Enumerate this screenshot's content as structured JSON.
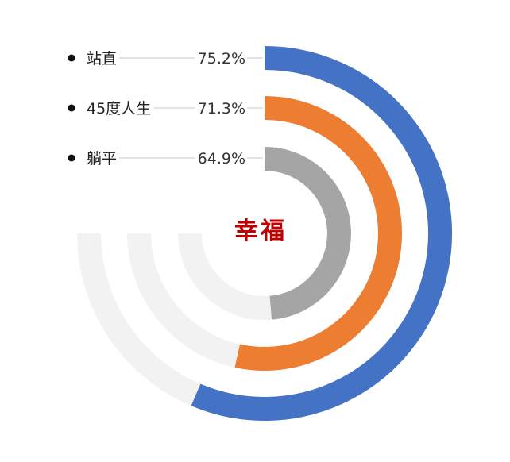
{
  "chart_data": {
    "type": "radial-bar",
    "title": "幸福",
    "series": [
      {
        "name": "站直",
        "value": 75.2,
        "label": "75.2%",
        "color": "#4472C4"
      },
      {
        "name": "45度人生",
        "value": 71.3,
        "label": "71.3%",
        "color": "#ED7D31"
      },
      {
        "name": "躺平",
        "value": 64.9,
        "label": "64.9%",
        "color": "#A5A5A5"
      }
    ],
    "max": 100,
    "track_color": "#F2F2F2",
    "title_color": "#C00000",
    "legend_placement": "top-left"
  }
}
